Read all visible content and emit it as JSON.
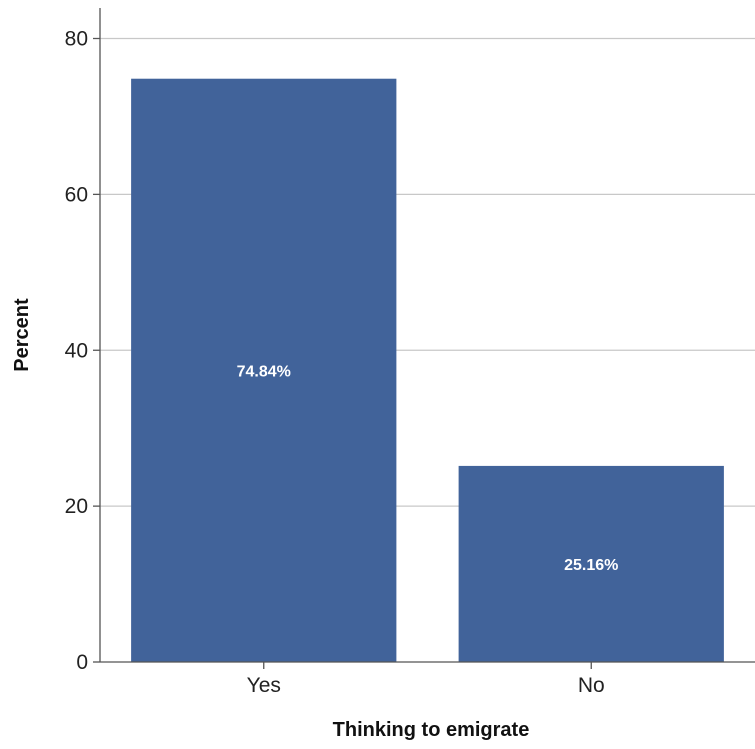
{
  "chart_data": {
    "type": "bar",
    "categories": [
      "Yes",
      "No"
    ],
    "values": [
      74.84,
      25.16
    ],
    "data_labels": [
      "74.84%",
      "25.16%"
    ],
    "xlabel": "Thinking to emigrate",
    "ylabel": "Percent",
    "ylim": [
      0,
      80
    ],
    "yticks": [
      0,
      20,
      40,
      60,
      80
    ],
    "grid": "horizontal",
    "bar_color": "#41639a"
  }
}
